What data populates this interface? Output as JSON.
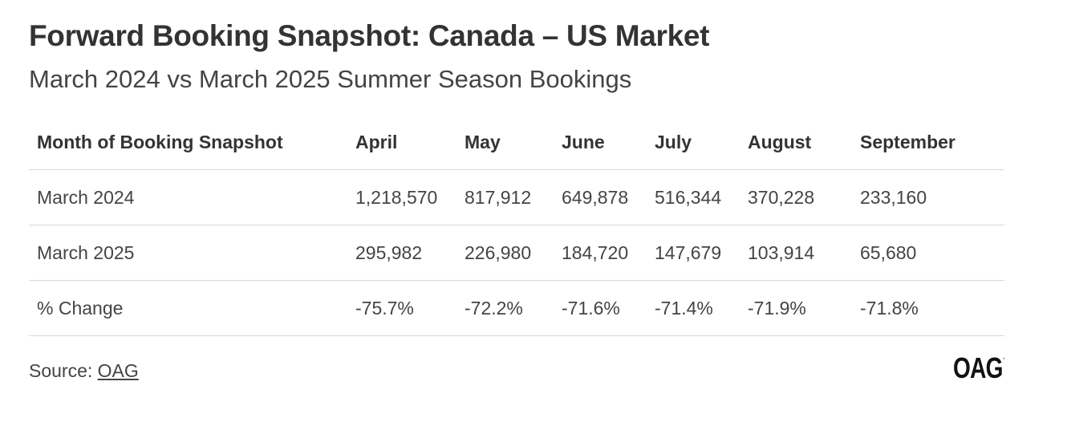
{
  "title": "Forward Booking Snapshot: Canada – US Market",
  "subtitle": "March 2024 vs March 2025 Summer Season Bookings",
  "chart_data": {
    "type": "table",
    "columns": [
      "Month of Booking Snapshot",
      "April",
      "May",
      "June",
      "July",
      "August",
      "September"
    ],
    "rows": [
      [
        "March 2024",
        "1,218,570",
        "817,912",
        "649,878",
        "516,344",
        "370,228",
        "233,160"
      ],
      [
        "March 2025",
        "295,982",
        "226,980",
        "184,720",
        "147,679",
        "103,914",
        "65,680"
      ],
      [
        "% Change",
        "-75.7%",
        "-72.2%",
        "-71.6%",
        "-71.4%",
        "-71.9%",
        "-71.8%"
      ]
    ]
  },
  "source": {
    "label": "Source: ",
    "link_text": "OAG"
  },
  "logo": {
    "text": "OAG",
    "mark": "·"
  }
}
